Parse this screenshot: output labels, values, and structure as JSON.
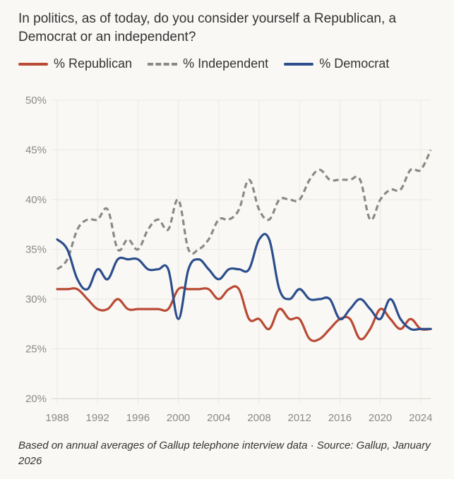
{
  "chart_data": {
    "type": "line",
    "title": "In politics, as of today, do you consider yourself a Republican, a Democrat or an independent?",
    "xlabel": "",
    "ylabel": "",
    "ylim": [
      20,
      50
    ],
    "xlim": [
      1988,
      2025
    ],
    "grid": true,
    "legend_position": "top-left",
    "y_ticks": [
      {
        "value": 50,
        "label": "50%"
      },
      {
        "value": 45,
        "label": "45%"
      },
      {
        "value": 40,
        "label": "40%"
      },
      {
        "value": 35,
        "label": "35%"
      },
      {
        "value": 30,
        "label": "30%"
      },
      {
        "value": 25,
        "label": "25%"
      },
      {
        "value": 20,
        "label": "20%"
      }
    ],
    "x_ticks": [
      {
        "value": 1988,
        "label": "1988"
      },
      {
        "value": 1992,
        "label": "1992"
      },
      {
        "value": 1996,
        "label": "1996"
      },
      {
        "value": 2000,
        "label": "2000"
      },
      {
        "value": 2004,
        "label": "2004"
      },
      {
        "value": 2008,
        "label": "2008"
      },
      {
        "value": 2012,
        "label": "2012"
      },
      {
        "value": 2016,
        "label": "2016"
      },
      {
        "value": 2020,
        "label": "2020"
      },
      {
        "value": 2024,
        "label": "2024"
      }
    ],
    "x": [
      1988,
      1989,
      1990,
      1991,
      1992,
      1993,
      1994,
      1995,
      1996,
      1997,
      1998,
      1999,
      2000,
      2001,
      2002,
      2003,
      2004,
      2005,
      2006,
      2007,
      2008,
      2009,
      2010,
      2011,
      2012,
      2013,
      2014,
      2015,
      2016,
      2017,
      2018,
      2019,
      2020,
      2021,
      2022,
      2023,
      2024,
      2025
    ],
    "series": [
      {
        "name": "% Republican",
        "color": "#b94a34",
        "style": "solid",
        "values": [
          31,
          31,
          31,
          30,
          29,
          29,
          30,
          29,
          29,
          29,
          29,
          29,
          31,
          31,
          31,
          31,
          30,
          31,
          31,
          28,
          28,
          27,
          29,
          28,
          28,
          26,
          26,
          27,
          28,
          28,
          26,
          27,
          29,
          28,
          27,
          28,
          27,
          27
        ]
      },
      {
        "name": "% Independent",
        "color": "#8a8a85",
        "style": "dashed",
        "values": [
          33,
          34,
          37,
          38,
          38,
          39,
          35,
          36,
          35,
          37,
          38,
          37,
          40,
          35,
          35,
          36,
          38,
          38,
          39,
          42,
          39,
          38,
          40,
          40,
          40,
          42,
          43,
          42,
          42,
          42,
          42,
          38,
          40,
          41,
          41,
          43,
          43,
          45
        ]
      },
      {
        "name": "% Democrat",
        "color": "#2c4e8c",
        "style": "solid",
        "values": [
          36,
          35,
          32,
          31,
          33,
          32,
          34,
          34,
          34,
          33,
          33,
          33,
          28,
          33,
          34,
          33,
          32,
          33,
          33,
          33,
          36,
          36,
          31,
          30,
          31,
          30,
          30,
          30,
          28,
          29,
          30,
          29,
          28,
          30,
          28,
          27,
          27,
          27
        ]
      }
    ]
  },
  "footnote": "Based on annual averages of Gallup telephone interview data  ·  Source: Gallup, January 2026"
}
